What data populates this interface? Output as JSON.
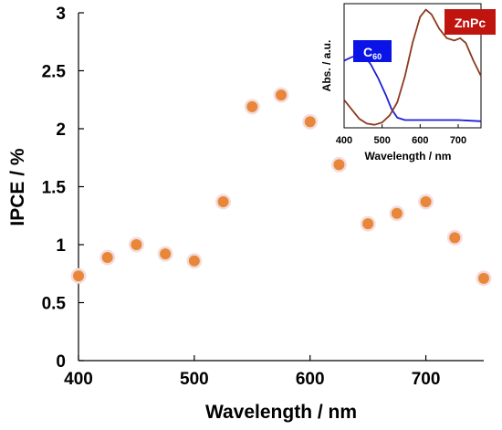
{
  "chart_data": [
    {
      "type": "scatter",
      "title": "",
      "xlabel": "Wavelength / nm",
      "ylabel": "IPCE / %",
      "xlim": [
        400,
        750
      ],
      "ylim": [
        0,
        3
      ],
      "x_ticks": [
        "400",
        "500",
        "600",
        "700"
      ],
      "y_ticks": [
        "0",
        "0.5",
        "1",
        "1.5",
        "2",
        "2.5",
        "3"
      ],
      "grid": false,
      "marker_color": "#e8873a",
      "points": [
        {
          "x": 400,
          "y": 0.73
        },
        {
          "x": 425,
          "y": 0.89
        },
        {
          "x": 450,
          "y": 1.0
        },
        {
          "x": 475,
          "y": 0.92
        },
        {
          "x": 500,
          "y": 0.86
        },
        {
          "x": 525,
          "y": 1.37
        },
        {
          "x": 550,
          "y": 2.19
        },
        {
          "x": 575,
          "y": 2.29
        },
        {
          "x": 600,
          "y": 2.06
        },
        {
          "x": 625,
          "y": 1.69
        },
        {
          "x": 650,
          "y": 1.18
        },
        {
          "x": 675,
          "y": 1.27
        },
        {
          "x": 700,
          "y": 1.37
        },
        {
          "x": 725,
          "y": 1.06
        },
        {
          "x": 750,
          "y": 0.71
        }
      ]
    },
    {
      "type": "line",
      "title": "",
      "xlabel": "Wavelength / nm",
      "ylabel": "Abs. / a.u.",
      "xlim": [
        400,
        760
      ],
      "ylim": [
        0,
        1
      ],
      "x_ticks": [
        "400",
        "500",
        "600",
        "700"
      ],
      "legend": "labels next to curves",
      "series": [
        {
          "name": "C60",
          "label_main": "C",
          "label_sub": "60",
          "color": "#1f1fd6",
          "x": [
            400,
            420,
            440,
            455,
            470,
            490,
            510,
            525,
            540,
            560,
            600,
            650,
            700,
            760
          ],
          "y": [
            0.55,
            0.58,
            0.6,
            0.58,
            0.52,
            0.4,
            0.26,
            0.14,
            0.07,
            0.05,
            0.05,
            0.05,
            0.05,
            0.04
          ]
        },
        {
          "name": "ZnPc",
          "label_main": "ZnPc",
          "color": "#8b3a1f",
          "x": [
            400,
            420,
            440,
            460,
            480,
            500,
            520,
            540,
            560,
            580,
            600,
            615,
            630,
            650,
            670,
            690,
            705,
            720,
            740,
            760
          ],
          "y": [
            0.22,
            0.14,
            0.06,
            0.02,
            0.01,
            0.03,
            0.09,
            0.2,
            0.42,
            0.7,
            0.92,
            0.98,
            0.94,
            0.82,
            0.74,
            0.72,
            0.74,
            0.7,
            0.55,
            0.42
          ]
        }
      ]
    }
  ]
}
